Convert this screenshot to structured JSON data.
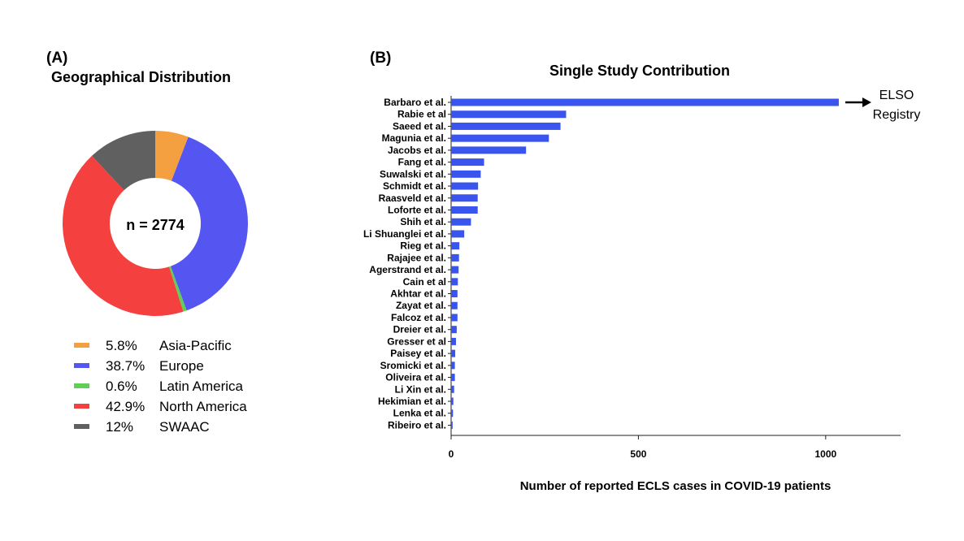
{
  "chart_data": [
    {
      "panel_label": "(A)",
      "type": "pie",
      "title": "Geographical Distribution",
      "center_label": "n = 2774",
      "slices": [
        {
          "label": "Asia-Pacific",
          "pct_text": "5.8%",
          "value": 5.8,
          "color": "#f5a040"
        },
        {
          "label": "Europe",
          "pct_text": "38.7%",
          "value": 38.7,
          "color": "#5555f2"
        },
        {
          "label": "Latin America",
          "pct_text": "0.6%",
          "value": 0.6,
          "color": "#5fcf55"
        },
        {
          "label": "North America",
          "pct_text": "42.9%",
          "value": 42.9,
          "color": "#f54040"
        },
        {
          "label": "SWAAC",
          "pct_text": "12%",
          "value": 12,
          "color": "#606060"
        }
      ],
      "legend_position": "bottom"
    },
    {
      "panel_label": "(B)",
      "type": "bar",
      "orientation": "horizontal",
      "title": "Single Study Contribution",
      "xlabel": "Number of reported ECLS cases in COVID-19 patients",
      "ylabel": "",
      "xlim": [
        0,
        1200
      ],
      "xticks": [
        0,
        500,
        1000
      ],
      "bar_color": "#3a55ee",
      "categories": [
        "Barbaro et al.",
        "Rabie et al",
        "Saeed et al.",
        "Magunia et al.",
        "Jacobs et al.",
        "Fang et al.",
        "Suwalski et al.",
        "Schmidt et al.",
        "Raasveld et al.",
        "Loforte et al.",
        "Shih et al.",
        "Li Shuanglei et al.",
        "Rieg et al.",
        "Rajajee et al.",
        "Agerstrand et al.",
        "Cain et al",
        "Akhtar et al.",
        "Zayat et al.",
        "Falcoz et al.",
        "Dreier et al.",
        "Gresser et al",
        "Paisey et al.",
        "Sromicki et al.",
        "Oliveira et al.",
        "Li Xin et al.",
        "Hekimian et al.",
        "Lenka et al.",
        "Ribeiro et al."
      ],
      "values": [
        1035,
        307,
        292,
        261,
        200,
        88,
        79,
        72,
        71,
        71,
        53,
        35,
        22,
        21,
        20,
        18,
        17,
        17,
        17,
        15,
        13,
        11,
        10,
        10,
        8,
        6,
        5,
        4
      ],
      "annotation": {
        "lines": [
          "ELSO",
          "Registry"
        ],
        "arrow": true
      },
      "grid": false
    }
  ]
}
